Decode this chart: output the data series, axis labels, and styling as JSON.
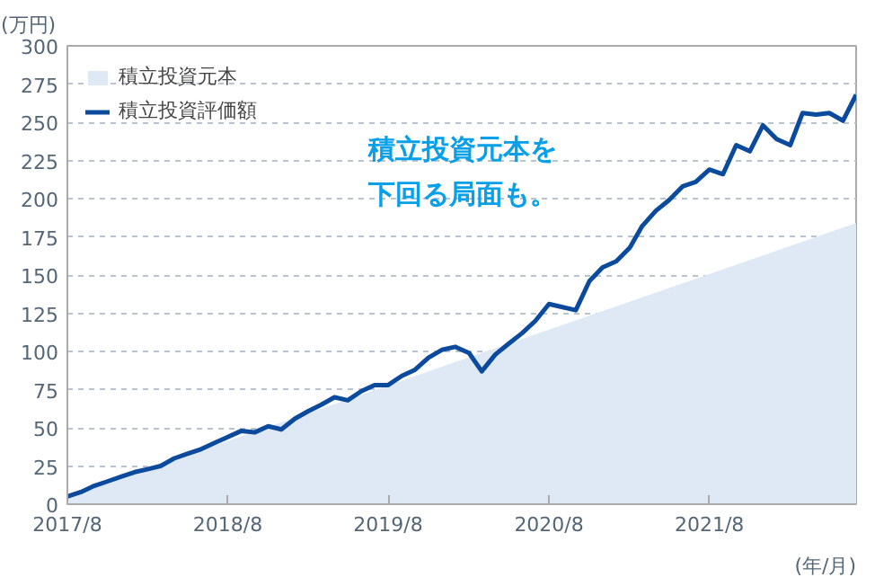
{
  "chart_data": {
    "type": "line",
    "ylabel": "(万円)",
    "xlabel": "(年/月)",
    "x": [
      "2017-08",
      "2017-09",
      "2017-10",
      "2017-11",
      "2017-12",
      "2018-01",
      "2018-02",
      "2018-03",
      "2018-04",
      "2018-05",
      "2018-06",
      "2018-07",
      "2018-08",
      "2018-09",
      "2018-10",
      "2018-11",
      "2018-12",
      "2019-01",
      "2019-02",
      "2019-03",
      "2019-04",
      "2019-05",
      "2019-06",
      "2019-07",
      "2019-08",
      "2019-09",
      "2019-10",
      "2019-11",
      "2019-12",
      "2020-01",
      "2020-02",
      "2020-03",
      "2020-04",
      "2020-05",
      "2020-06",
      "2020-07",
      "2020-08",
      "2020-09",
      "2020-10",
      "2020-11",
      "2020-12",
      "2021-01",
      "2021-02",
      "2021-03",
      "2021-04",
      "2021-05",
      "2021-06",
      "2021-07",
      "2021-08",
      "2021-09",
      "2021-10",
      "2021-11",
      "2021-12",
      "2022-01",
      "2022-02",
      "2022-03",
      "2022-04",
      "2022-05",
      "2022-06",
      "2022-07"
    ],
    "series": [
      {
        "name": "積立投資元本",
        "type": "area",
        "color": "#dfe9f5",
        "x": [
          "2017-08",
          "2022-07"
        ],
        "values": [
          5,
          184
        ]
      },
      {
        "name": "積立投資評価額",
        "color": "#0b4a9c",
        "values": [
          5,
          8,
          12,
          15,
          18,
          21,
          23,
          25,
          30,
          33,
          36,
          40,
          44,
          48,
          47,
          51,
          49,
          56,
          61,
          65,
          70,
          68,
          74,
          78,
          78,
          84,
          88,
          96,
          101,
          103,
          99,
          87,
          98,
          105,
          112,
          120,
          131,
          129,
          127,
          146,
          155,
          159,
          168,
          182,
          192,
          199,
          208,
          211,
          219,
          216,
          235,
          231,
          248,
          239,
          235,
          256,
          255,
          256,
          251,
          268
        ]
      }
    ],
    "xlim": [
      "2017-08",
      "2022-07"
    ],
    "xticks": [
      {
        "value": "2017-08",
        "label": "2017/8"
      },
      {
        "value": "2018-08",
        "label": "2018/8"
      },
      {
        "value": "2019-08",
        "label": "2019/8"
      },
      {
        "value": "2020-08",
        "label": "2020/8"
      },
      {
        "value": "2021-08",
        "label": "2021/8"
      }
    ],
    "ylim": [
      0,
      300
    ],
    "yticks": [
      0,
      25,
      50,
      75,
      100,
      125,
      150,
      175,
      200,
      225,
      250,
      275,
      300
    ],
    "grid": "y",
    "legend": "top left",
    "annotations": [
      "積立投資元本を下回る局面も。"
    ]
  }
}
